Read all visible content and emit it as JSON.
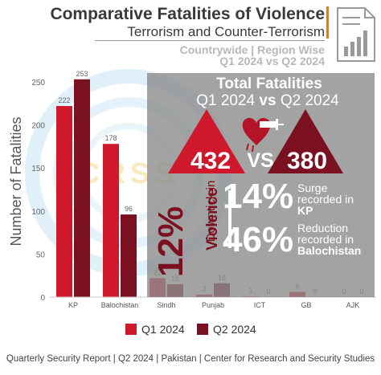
{
  "header": {
    "title": "Comparative Fatalities of Violence",
    "subtitle": "Terrorism and Counter-Terrorism",
    "scope_line1": "Countrywide | Region Wise",
    "scope_line2": "Q1 2024 vs Q2 2024"
  },
  "watermark": "CRSS",
  "summary": {
    "heading_line1": "Total Fatalities",
    "heading_q1": "Q1 2024",
    "heading_vs": "vs",
    "heading_q2": "Q2 2024",
    "q1_total": "432",
    "vs": "VS",
    "q2_total": "380",
    "downtick_pct": "12%",
    "downtick_line1": "Downtick in",
    "downtick_line2": "Violence",
    "kp_pct": "14%",
    "kp_line1": "Surge",
    "kp_line2": "recorded in",
    "kp_region": "KP",
    "bal_pct": "46%",
    "bal_line1": "Reduction",
    "bal_line2": "recorded in",
    "bal_region": "Balochistan"
  },
  "footer": "Quarterly Security Report | Q2 2024 | Pakistan | Center for Research and Security Studies",
  "colors": {
    "q1": "#d0182d",
    "q2": "#7a1020",
    "panel": "#8c8c8c",
    "accent": "#c9813a"
  },
  "chart_data": {
    "type": "bar",
    "categories": [
      "KP",
      "Balochistan",
      "Sindh",
      "Punjab",
      "ICT",
      "GB",
      "AJK"
    ],
    "series": [
      {
        "name": "Q1 2024",
        "values": [
          222,
          178,
          22,
          3,
          1,
          6,
          0
        ]
      },
      {
        "name": "Q2 2024",
        "values": [
          253,
          96,
          15,
          16,
          0,
          0,
          0
        ]
      }
    ],
    "ylabel": "Number of Fatalities",
    "ylim": [
      0,
      250
    ],
    "yticks": [
      0,
      50,
      100,
      150,
      200,
      250
    ],
    "grid": false,
    "legend": "bottom"
  }
}
